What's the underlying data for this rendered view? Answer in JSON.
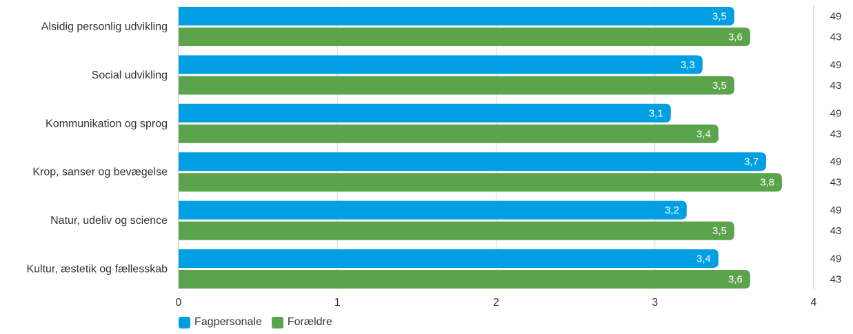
{
  "chart_data": {
    "type": "bar",
    "orientation": "horizontal",
    "categories": [
      "Alsidig personlig udvikling",
      "Social udvikling",
      "Kommunikation og sprog",
      "Krop, sanser og bevægelse",
      "Natur, udeliv og science",
      "Kultur, æstetik og fællesskab"
    ],
    "series": [
      {
        "name": "Fagpersonale",
        "color": "#009FE3",
        "values": [
          3.5,
          3.3,
          3.1,
          3.7,
          3.2,
          3.4
        ],
        "value_labels": [
          "3,5",
          "3,3",
          "3,1",
          "3,7",
          "3,2",
          "3,4"
        ],
        "n": [
          "49",
          "49",
          "49",
          "49",
          "49",
          "49"
        ]
      },
      {
        "name": "Forældre",
        "color": "#5BA44B",
        "values": [
          3.6,
          3.5,
          3.4,
          3.8,
          3.5,
          3.6
        ],
        "value_labels": [
          "3,6",
          "3,5",
          "3,4",
          "3,8",
          "3,5",
          "3,6"
        ],
        "n": [
          "43",
          "43",
          "43",
          "43",
          "43",
          "43"
        ]
      }
    ],
    "xlim": [
      0,
      4
    ],
    "xticks": [
      0,
      1,
      2,
      3,
      4
    ],
    "xtick_labels": [
      "0",
      "1",
      "2",
      "3",
      "4"
    ],
    "grid": true,
    "legend": "bottom-left"
  }
}
